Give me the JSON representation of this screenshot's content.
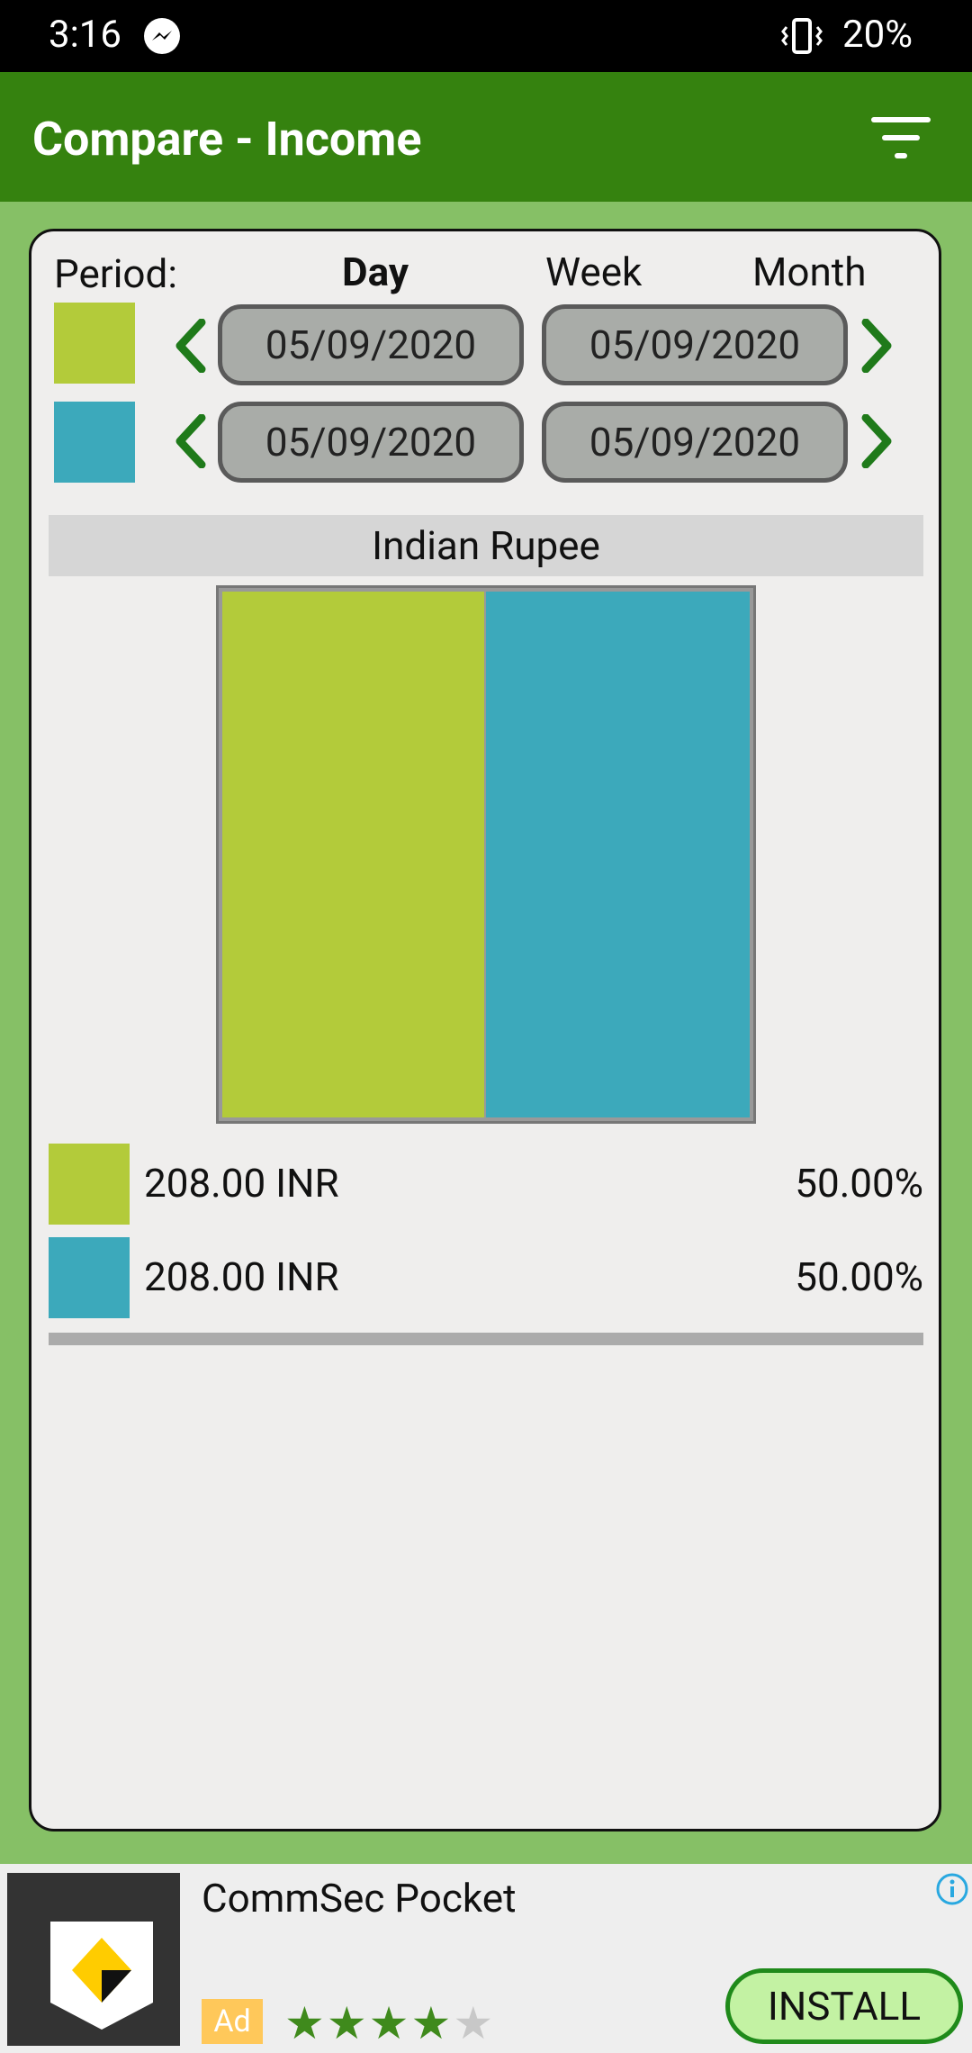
{
  "status_bar": {
    "time": "3:16",
    "battery": "20%"
  },
  "app_bar": {
    "title": "Compare - Income"
  },
  "period": {
    "label": "Period:",
    "options": [
      "Day",
      "Week",
      "Month"
    ],
    "selected": "Day"
  },
  "ranges": [
    {
      "color": "#b3cb3a",
      "start_date": "05/09/2020",
      "end_date": "05/09/2020"
    },
    {
      "color": "#3ca9bb",
      "start_date": "05/09/2020",
      "end_date": "05/09/2020"
    }
  ],
  "currency": "Indian Rupee",
  "chart_data": {
    "type": "bar",
    "categories": [
      "",
      ""
    ],
    "values": [
      50.0,
      50.0
    ],
    "colors": [
      "#b3cb3a",
      "#3ca9bb"
    ],
    "stacked_horizontal_percent": true
  },
  "legend": [
    {
      "amount": "208.00 INR",
      "percent": "50.00%",
      "color": "#b3cb3a"
    },
    {
      "amount": "208.00 INR",
      "percent": "50.00%",
      "color": "#3ca9bb"
    }
  ],
  "ad": {
    "app_name": "CommSec Pocket",
    "badge": "Ad",
    "rating": 4,
    "rating_max": 5,
    "cta": "INSTALL"
  }
}
